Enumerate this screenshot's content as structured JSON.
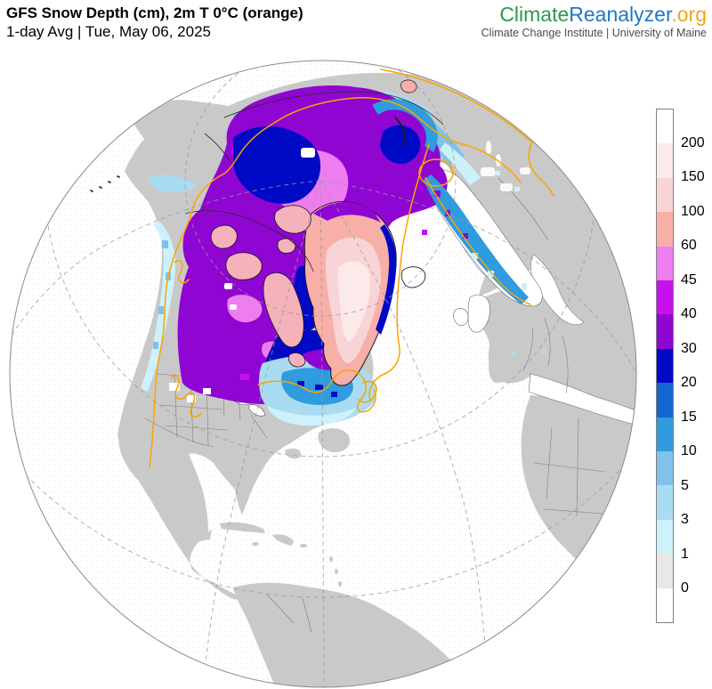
{
  "header": {
    "title": "GFS Snow Depth (cm), 2m T 0°C (orange)",
    "subtitle": "1-day Avg | Tue, May 06, 2025"
  },
  "branding": {
    "logo_climate": "Climate",
    "logo_reanalyzer": "Reanalyzer",
    "logo_org": ".org",
    "logo_colors": {
      "climate": "#2E9A49",
      "reanalyzer": "#2077C4",
      "org": "#F2A51C"
    },
    "tagline": "Climate Change Institute | University of Maine"
  },
  "map": {
    "projection": "orthographic-globe",
    "variable": "snow depth (cm)",
    "overlay": "2m temperature 0°C isotherm",
    "colors": {
      "ocean": "#FFFFFF",
      "land": "#C9C9C9",
      "coastline": "#4A4A4A",
      "country_borders": "#7F7F7F",
      "graticule": "#9B9B9B",
      "temp_contour": "#FFA200"
    }
  },
  "colorbar": {
    "units": "cm",
    "tick_labels": [
      "200",
      "150",
      "100",
      "60",
      "45",
      "40",
      "30",
      "20",
      "15",
      "10",
      "5",
      "3",
      "1",
      "0"
    ],
    "segments": [
      {
        "range": ">200",
        "color": "#FFFFFF"
      },
      {
        "range": "150-200",
        "color": "#FCEAEA"
      },
      {
        "range": "100-150",
        "color": "#F9D4D6"
      },
      {
        "range": "60-100",
        "color": "#F7AFA8"
      },
      {
        "range": "45-60",
        "color": "#EE7DF0"
      },
      {
        "range": "40-45",
        "color": "#C80FEE"
      },
      {
        "range": "30-40",
        "color": "#8F06D2"
      },
      {
        "range": "20-30",
        "color": "#0009C6"
      },
      {
        "range": "15-20",
        "color": "#1467CE"
      },
      {
        "range": "10-15",
        "color": "#2E9CDE"
      },
      {
        "range": "5-10",
        "color": "#7FC2EA"
      },
      {
        "range": "3-5",
        "color": "#A9DCF2"
      },
      {
        "range": "1-3",
        "color": "#CDF1FA"
      },
      {
        "range": "0-1",
        "color": "#E7E7E7"
      },
      {
        "range": "<0",
        "color": "#FFFFFF"
      }
    ]
  }
}
